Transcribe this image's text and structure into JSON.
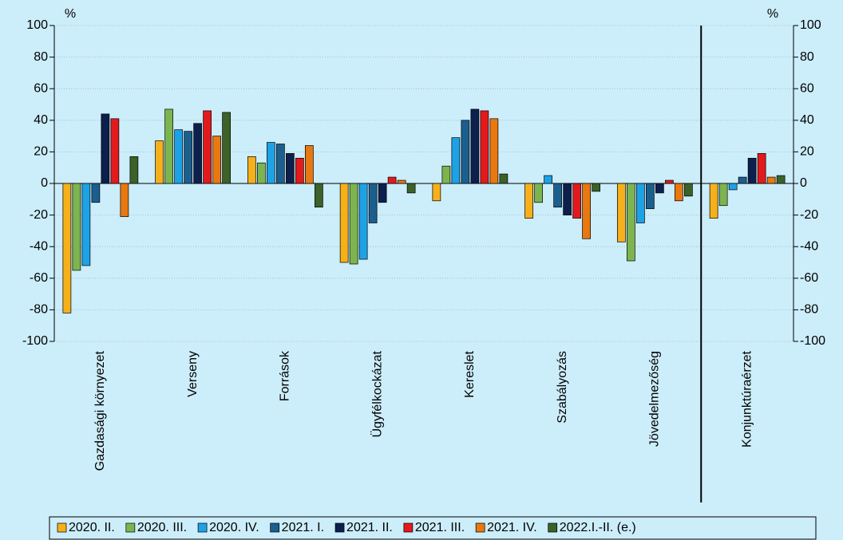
{
  "chart_data": {
    "type": "bar",
    "y_unit": "%",
    "y2_unit": "%",
    "categories": [
      "Gazdasági környezet",
      "Verseny",
      "Források",
      "Ügyfélkockázat",
      "Kereslet",
      "Szabályozás",
      "Jövedelmezőség",
      "Konjunktúraérzet"
    ],
    "series": [
      {
        "name": "2020. II.",
        "color": "#f5b01a",
        "values": [
          -82,
          27,
          17,
          -50,
          -11,
          -22,
          -37,
          -22
        ]
      },
      {
        "name": "2020. III.",
        "color": "#7cb550",
        "values": [
          -55,
          47,
          13,
          -51,
          11,
          -12,
          -49,
          -14
        ]
      },
      {
        "name": "2020. IV.",
        "color": "#1ea2e6",
        "values": [
          -52,
          34,
          26,
          -48,
          29,
          5,
          -25,
          -4
        ]
      },
      {
        "name": "2021. I.",
        "color": "#1b5f8e",
        "values": [
          -12,
          33,
          25,
          -25,
          40,
          -15,
          -16,
          4
        ]
      },
      {
        "name": "2021. II.",
        "color": "#0d1f4d",
        "values": [
          44,
          38,
          19,
          -12,
          47,
          -20,
          -6,
          16
        ]
      },
      {
        "name": "2021. III.",
        "color": "#e31a1c",
        "values": [
          41,
          46,
          16,
          4,
          46,
          -22,
          2,
          19
        ]
      },
      {
        "name": "2021. IV.",
        "color": "#e8780f",
        "values": [
          -21,
          30,
          24,
          2,
          41,
          -35,
          -11,
          4
        ]
      },
      {
        "name": "2022.I.-II. (e.)",
        "color": "#3b6228",
        "values": [
          17,
          45,
          -15,
          -6,
          6,
          -5,
          -8,
          5
        ]
      }
    ],
    "ylim": [
      -100,
      100
    ],
    "yticks": [
      -100,
      -80,
      -60,
      -40,
      -20,
      0,
      20,
      40,
      60,
      80,
      100
    ],
    "y2lim": [
      -100,
      100
    ],
    "y2ticks": [
      -100,
      -80,
      -60,
      -40,
      -20,
      0,
      20,
      40,
      60,
      80,
      100
    ],
    "grid": true
  }
}
